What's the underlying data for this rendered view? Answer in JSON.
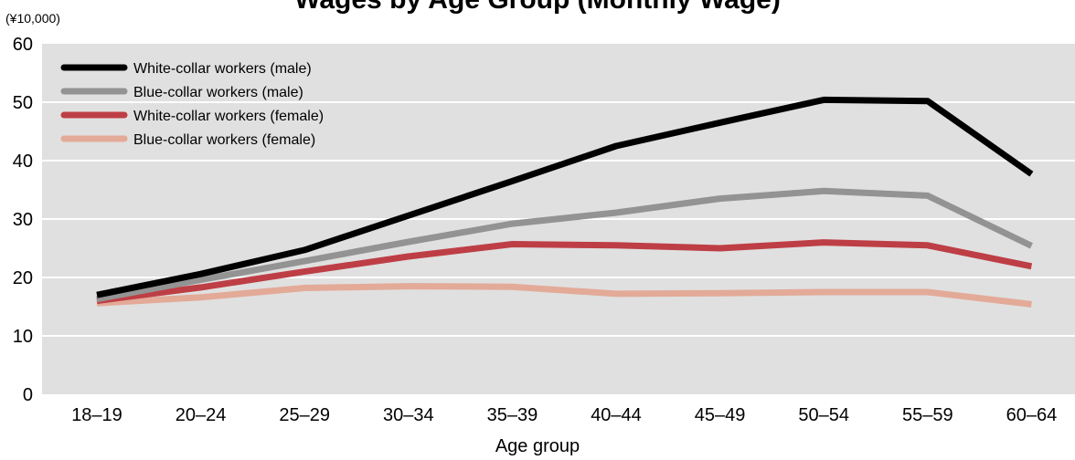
{
  "chart_data": {
    "type": "line",
    "title": "Wages by Age Group (Monthly Wage)",
    "unit_label": "(¥10,000)",
    "xlabel": "Age group",
    "ylabel": "",
    "categories": [
      "18–19",
      "20–24",
      "25–29",
      "30–34",
      "35–39",
      "40–44",
      "45–49",
      "50–54",
      "55–59",
      "60–64"
    ],
    "ylim": [
      0,
      60
    ],
    "yticks": [
      0,
      10,
      20,
      30,
      40,
      50,
      60
    ],
    "grid": true,
    "legend_position": "top-left",
    "series": [
      {
        "name": "White-collar workers (male)",
        "color": "#000000",
        "values": [
          17.0,
          20.6,
          24.7,
          30.6,
          36.5,
          42.5,
          46.5,
          50.4,
          50.2,
          37.7
        ]
      },
      {
        "name": "Blue-collar workers (male)",
        "color": "#939393",
        "values": [
          16.3,
          19.6,
          22.8,
          26.1,
          29.2,
          31.1,
          33.5,
          34.8,
          34.0,
          25.4
        ]
      },
      {
        "name": "White-collar workers (female)",
        "color": "#be3e45",
        "values": [
          16.0,
          18.3,
          21.0,
          23.6,
          25.7,
          25.5,
          25.0,
          26.0,
          25.5,
          21.9
        ]
      },
      {
        "name": "Blue-collar workers (female)",
        "color": "#e3aa98",
        "values": [
          15.6,
          16.6,
          18.2,
          18.5,
          18.4,
          17.2,
          17.3,
          17.5,
          17.5,
          15.4
        ]
      }
    ]
  }
}
